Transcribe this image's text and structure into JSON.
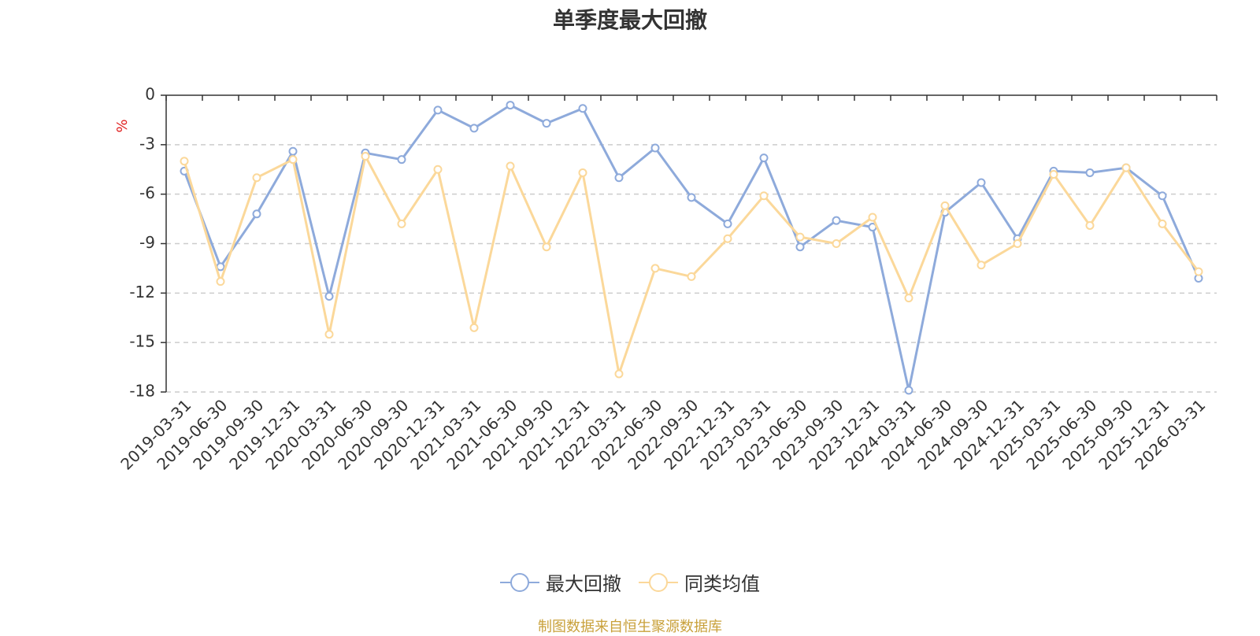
{
  "chart_data": {
    "type": "line",
    "title": "单季度最大回撤",
    "ylabel": "%",
    "ylim": [
      -18,
      0
    ],
    "yticks": [
      0,
      -3,
      -6,
      -9,
      -12,
      -15,
      -18
    ],
    "grid": true,
    "legend_position": "bottom-center",
    "categories": [
      "2019-03-31",
      "2019-06-30",
      "2019-09-30",
      "2019-12-31",
      "2020-03-31",
      "2020-06-30",
      "2020-09-30",
      "2020-12-31",
      "2021-03-31",
      "2021-06-30",
      "2021-09-30",
      "2021-12-31",
      "2022-03-31",
      "2022-06-30",
      "2022-09-30",
      "2022-12-31",
      "2023-03-31",
      "2023-06-30",
      "2023-09-30",
      "2023-12-31",
      "2024-03-31",
      "2024-06-30",
      "2024-09-30",
      "2024-12-31",
      "2025-03-31",
      "2025-06-30",
      "2025-09-30",
      "2025-12-31",
      "2026-03-31"
    ],
    "series": [
      {
        "name": "最大回撤",
        "color": "#8eaadb",
        "values": [
          -4.6,
          -10.4,
          -7.2,
          -3.4,
          -12.2,
          -3.5,
          -3.9,
          -0.9,
          -2.0,
          -0.6,
          -1.7,
          -0.8,
          -5.0,
          -3.2,
          -6.2,
          -7.8,
          -3.8,
          -9.2,
          -7.6,
          -8.0,
          -17.9,
          -7.1,
          -5.3,
          -8.7,
          -4.6,
          -4.7,
          -4.4,
          -6.1,
          -11.1
        ]
      },
      {
        "name": "同类均值",
        "color": "#fbd89a",
        "values": [
          -4.0,
          -11.3,
          -5.0,
          -3.9,
          -14.5,
          -3.7,
          -7.8,
          -4.5,
          -14.1,
          -4.3,
          -9.2,
          -4.7,
          -16.9,
          -10.5,
          -11.0,
          -8.7,
          -6.1,
          -8.6,
          -9.0,
          -7.4,
          -12.3,
          -6.7,
          -10.3,
          -9.0,
          -4.8,
          -7.9,
          -4.4,
          -7.8,
          -10.7
        ]
      }
    ]
  },
  "source_note": "制图数据来自恒生聚源数据库"
}
